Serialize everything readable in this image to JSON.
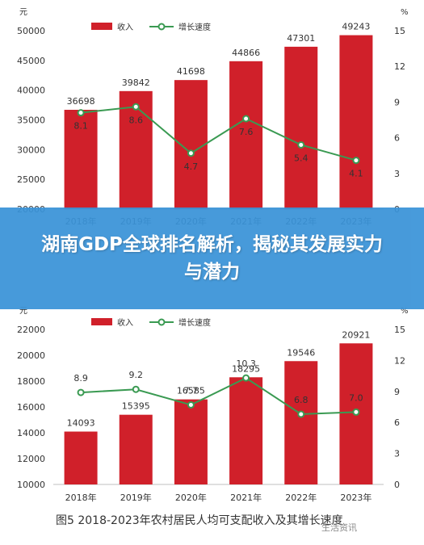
{
  "banner": {
    "title": "湖南GDP全球排名解析，揭秘其发展实力与潜力"
  },
  "caption": "图5    2018-2023年农村居民人均可支配收入及其增长速度",
  "watermark": "生活资讯",
  "colors": {
    "bar": "#d0202a",
    "line": "#3a9a52",
    "marker_fill": "#ffffff"
  },
  "chart_data": [
    {
      "type": "bar",
      "categories": [
        "2018年",
        "2019年",
        "2020年",
        "2021年",
        "2022年",
        "2023年"
      ],
      "series": [
        {
          "name": "收入",
          "kind": "bar",
          "values": [
            36698,
            39842,
            41698,
            44866,
            47301,
            49243
          ],
          "labels": [
            "36698",
            "39842",
            "41698",
            "44866",
            "47301",
            "49243"
          ]
        },
        {
          "name": "增长速度",
          "kind": "line",
          "values": [
            8.1,
            8.6,
            4.7,
            7.6,
            5.4,
            4.1
          ],
          "labels": [
            "8.1",
            "8.6",
            "4.7",
            "7.6",
            "5.4",
            "4.1"
          ]
        }
      ],
      "y_left": {
        "unit": "元",
        "ylim": [
          20000,
          50000
        ],
        "ticks": [
          "20000",
          "25000",
          "30000",
          "35000",
          "40000",
          "45000",
          "50000"
        ]
      },
      "y_right": {
        "unit": "%",
        "ylim": [
          0,
          15
        ],
        "ticks": [
          "0",
          "3",
          "6",
          "9",
          "12",
          "15"
        ]
      },
      "legend": "top-left"
    },
    {
      "type": "bar",
      "categories": [
        "2018年",
        "2019年",
        "2020年",
        "2021年",
        "2022年",
        "2023年"
      ],
      "series": [
        {
          "name": "收入",
          "kind": "bar",
          "values": [
            14093,
            15395,
            16585,
            18295,
            19546,
            20921
          ],
          "labels": [
            "14093",
            "15395",
            "16585",
            "18295",
            "19546",
            "20921"
          ]
        },
        {
          "name": "增长速度",
          "kind": "line",
          "values": [
            8.9,
            9.2,
            7.7,
            10.3,
            6.8,
            7.0
          ],
          "labels": [
            "8.9",
            "9.2",
            "7.7",
            "10.3",
            "6.8",
            "7.0"
          ]
        }
      ],
      "y_left": {
        "unit": "元",
        "ylim": [
          10000,
          22000
        ],
        "ticks": [
          "10000",
          "12000",
          "14000",
          "16000",
          "18000",
          "20000",
          "22000"
        ]
      },
      "y_right": {
        "unit": "%",
        "ylim": [
          0,
          15
        ],
        "ticks": [
          "0",
          "3",
          "6",
          "9",
          "12",
          "15"
        ]
      },
      "legend": "top-left"
    }
  ]
}
